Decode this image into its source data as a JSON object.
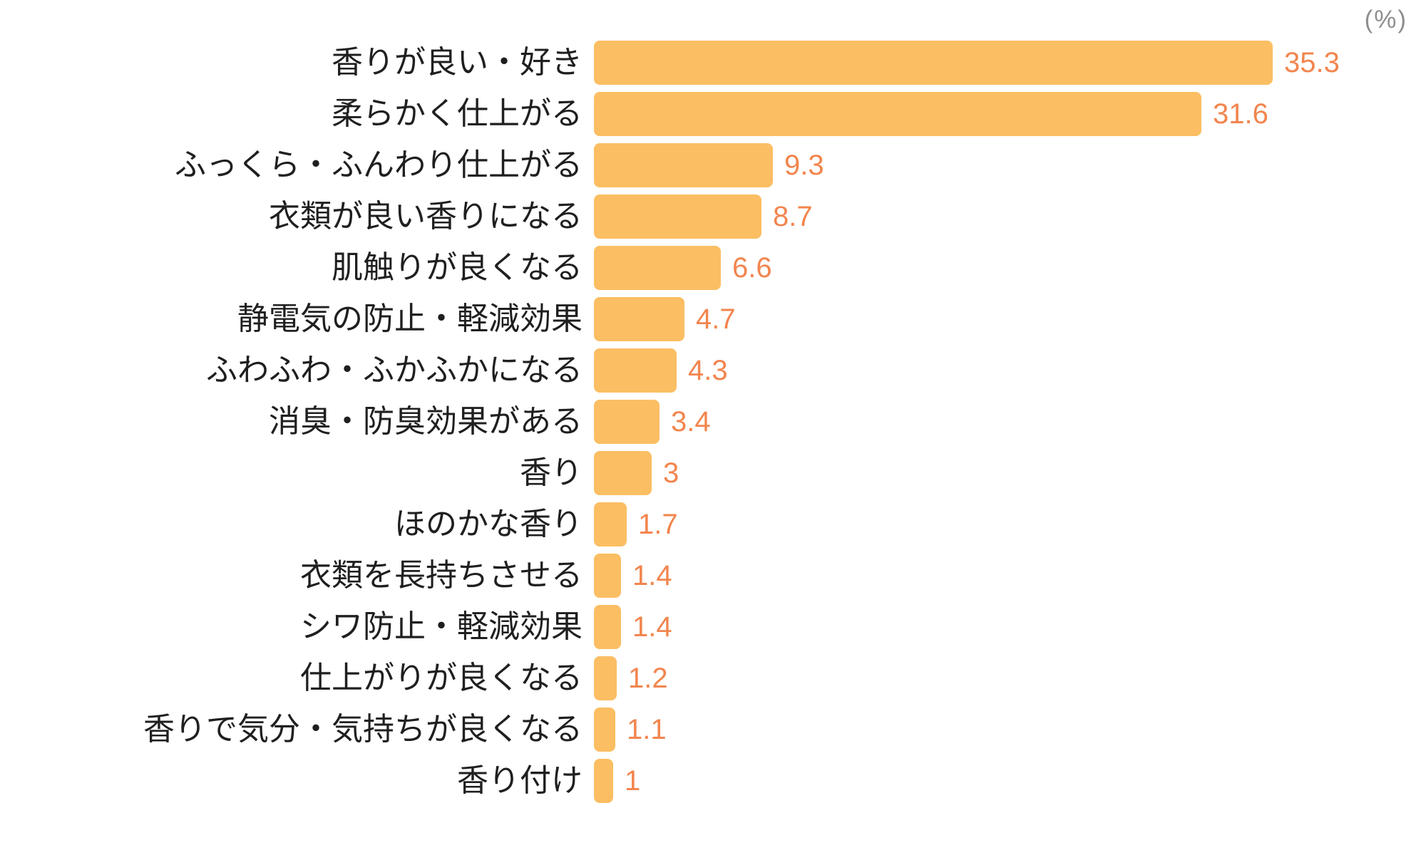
{
  "unit_label": "(%)",
  "colors": {
    "background": "#ffffff",
    "bar": "#fbbe63",
    "value_text": "#f2854e",
    "label_text": "#1f1f1f",
    "unit_text": "#8e8e8e"
  },
  "chart_data": {
    "type": "bar",
    "orientation": "horizontal",
    "title": "",
    "xlabel": "",
    "ylabel": "",
    "unit": "%",
    "grid": false,
    "legend": false,
    "xlim": [
      0,
      35.3
    ],
    "value_label_position": "outside-right",
    "categories": [
      "香りが良い・好き",
      "柔らかく仕上がる",
      "ふっくら・ふんわり仕上がる",
      "衣類が良い香りになる",
      "肌触りが良くなる",
      "静電気の防止・軽減効果",
      "ふわふわ・ふかふかになる",
      "消臭・防臭効果がある",
      "香り",
      "ほのかな香り",
      "衣類を長持ちさせる",
      "シワ防止・軽減効果",
      "仕上がりが良くなる",
      "香りで気分・気持ちが良くなる",
      "香り付け"
    ],
    "values": [
      35.3,
      31.6,
      9.3,
      8.7,
      6.6,
      4.7,
      4.3,
      3.4,
      3,
      1.7,
      1.4,
      1.4,
      1.2,
      1.1,
      1
    ],
    "value_labels": [
      "35.3",
      "31.6",
      "9.3",
      "8.7",
      "6.6",
      "4.7",
      "4.3",
      "3.4",
      "3",
      "1.7",
      "1.4",
      "1.4",
      "1.2",
      "1.1",
      "1"
    ]
  }
}
